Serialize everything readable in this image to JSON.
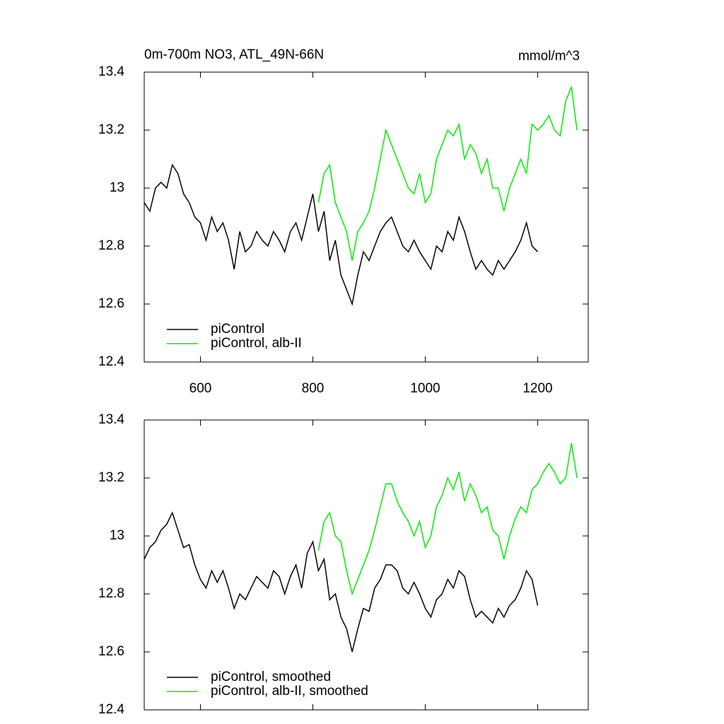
{
  "chart_data": [
    {
      "type": "line",
      "title": "0m-700m NO3, ATL_49N-66N",
      "right_title": "mmol/m^3",
      "xlim": [
        500,
        1290
      ],
      "ylim": [
        12.4,
        13.4
      ],
      "xticks": [
        600,
        800,
        1000,
        1200
      ],
      "x_tick_labels": true,
      "yticks": [
        12.4,
        12.6,
        12.8,
        13.0,
        13.2,
        13.4
      ],
      "series": [
        {
          "name": "piControl",
          "color": "#000000",
          "x": [
            500,
            510,
            520,
            530,
            540,
            550,
            560,
            570,
            580,
            590,
            600,
            610,
            620,
            630,
            640,
            650,
            660,
            670,
            680,
            690,
            700,
            710,
            720,
            730,
            740,
            750,
            760,
            770,
            780,
            790,
            800,
            810,
            820,
            830,
            840,
            850,
            860,
            870,
            880,
            890,
            900,
            910,
            920,
            930,
            940,
            950,
            960,
            970,
            980,
            990,
            1000,
            1010,
            1020,
            1030,
            1040,
            1050,
            1060,
            1070,
            1080,
            1090,
            1100,
            1110,
            1120,
            1130,
            1140,
            1150,
            1160,
            1170,
            1180,
            1190,
            1200
          ],
          "values": [
            12.95,
            12.92,
            13.0,
            13.02,
            13.0,
            13.08,
            13.05,
            12.98,
            12.95,
            12.9,
            12.88,
            12.82,
            12.9,
            12.85,
            12.88,
            12.82,
            12.72,
            12.85,
            12.78,
            12.8,
            12.85,
            12.82,
            12.8,
            12.85,
            12.82,
            12.78,
            12.85,
            12.88,
            12.82,
            12.9,
            12.98,
            12.85,
            12.92,
            12.75,
            12.82,
            12.7,
            12.65,
            12.6,
            12.7,
            12.78,
            12.75,
            12.8,
            12.85,
            12.88,
            12.9,
            12.85,
            12.8,
            12.78,
            12.82,
            12.78,
            12.75,
            12.72,
            12.8,
            12.78,
            12.85,
            12.82,
            12.9,
            12.85,
            12.78,
            12.72,
            12.75,
            12.72,
            12.7,
            12.75,
            12.72,
            12.75,
            12.78,
            12.82,
            12.88,
            12.8,
            12.78
          ]
        },
        {
          "name": "piControl, alb-II",
          "color": "#00ee00",
          "x": [
            810,
            820,
            830,
            840,
            850,
            860,
            870,
            880,
            890,
            900,
            910,
            920,
            930,
            940,
            950,
            960,
            970,
            980,
            990,
            1000,
            1010,
            1020,
            1030,
            1040,
            1050,
            1060,
            1070,
            1080,
            1090,
            1100,
            1110,
            1120,
            1130,
            1140,
            1150,
            1160,
            1170,
            1180,
            1190,
            1200,
            1210,
            1220,
            1230,
            1240,
            1250,
            1260,
            1270
          ],
          "values": [
            12.95,
            13.05,
            13.08,
            12.95,
            12.9,
            12.85,
            12.75,
            12.85,
            12.88,
            12.92,
            13.0,
            13.1,
            13.2,
            13.15,
            13.1,
            13.05,
            13.0,
            12.98,
            13.05,
            12.95,
            12.98,
            13.1,
            13.15,
            13.2,
            13.18,
            13.22,
            13.1,
            13.15,
            13.12,
            13.05,
            13.1,
            13.0,
            13.0,
            12.92,
            13.0,
            13.05,
            13.1,
            13.05,
            13.22,
            13.2,
            13.22,
            13.25,
            13.2,
            13.18,
            13.3,
            13.35,
            13.2
          ]
        }
      ]
    },
    {
      "type": "line",
      "xlim": [
        500,
        1290
      ],
      "ylim": [
        12.4,
        13.4
      ],
      "xticks": [
        600,
        800,
        1000,
        1200
      ],
      "x_tick_labels": false,
      "yticks": [
        12.4,
        12.6,
        12.8,
        13.0,
        13.2,
        13.4
      ],
      "series": [
        {
          "name": "piControl, smoothed",
          "color": "#000000",
          "x": [
            500,
            510,
            520,
            530,
            540,
            550,
            560,
            570,
            580,
            590,
            600,
            610,
            620,
            630,
            640,
            650,
            660,
            670,
            680,
            690,
            700,
            710,
            720,
            730,
            740,
            750,
            760,
            770,
            780,
            790,
            800,
            810,
            820,
            830,
            840,
            850,
            860,
            870,
            880,
            890,
            900,
            910,
            920,
            930,
            940,
            950,
            960,
            970,
            980,
            990,
            1000,
            1010,
            1020,
            1030,
            1040,
            1050,
            1060,
            1070,
            1080,
            1090,
            1100,
            1110,
            1120,
            1130,
            1140,
            1150,
            1160,
            1170,
            1180,
            1190,
            1200
          ],
          "values": [
            12.92,
            12.96,
            12.98,
            13.02,
            13.04,
            13.08,
            13.02,
            12.96,
            12.97,
            12.9,
            12.85,
            12.82,
            12.88,
            12.84,
            12.88,
            12.82,
            12.75,
            12.8,
            12.78,
            12.82,
            12.86,
            12.84,
            12.82,
            12.88,
            12.86,
            12.8,
            12.86,
            12.9,
            12.82,
            12.94,
            12.98,
            12.88,
            12.92,
            12.78,
            12.8,
            12.72,
            12.68,
            12.6,
            12.68,
            12.75,
            12.74,
            12.82,
            12.85,
            12.9,
            12.9,
            12.88,
            12.82,
            12.8,
            12.84,
            12.8,
            12.75,
            12.72,
            12.78,
            12.8,
            12.85,
            12.82,
            12.88,
            12.86,
            12.78,
            12.72,
            12.74,
            12.72,
            12.7,
            12.75,
            12.72,
            12.76,
            12.78,
            12.82,
            12.88,
            12.85,
            12.76
          ]
        },
        {
          "name": "piControl, alb-II, smoothed",
          "color": "#00ee00",
          "x": [
            810,
            820,
            830,
            840,
            850,
            860,
            870,
            880,
            890,
            900,
            910,
            920,
            930,
            940,
            950,
            960,
            970,
            980,
            990,
            1000,
            1010,
            1020,
            1030,
            1040,
            1050,
            1060,
            1070,
            1080,
            1090,
            1100,
            1110,
            1120,
            1130,
            1140,
            1150,
            1160,
            1170,
            1180,
            1190,
            1200,
            1210,
            1220,
            1230,
            1240,
            1250,
            1260,
            1270
          ],
          "values": [
            12.95,
            13.05,
            13.08,
            13.0,
            12.98,
            12.88,
            12.8,
            12.85,
            12.9,
            12.95,
            13.02,
            13.1,
            13.18,
            13.18,
            13.12,
            13.08,
            13.05,
            13.0,
            13.05,
            12.96,
            13.0,
            13.1,
            13.14,
            13.2,
            13.16,
            13.22,
            13.12,
            13.18,
            13.14,
            13.08,
            13.1,
            13.02,
            13.0,
            12.92,
            13.0,
            13.06,
            13.1,
            13.08,
            13.16,
            13.18,
            13.22,
            13.25,
            13.22,
            13.18,
            13.2,
            13.32,
            13.2
          ]
        }
      ]
    }
  ]
}
